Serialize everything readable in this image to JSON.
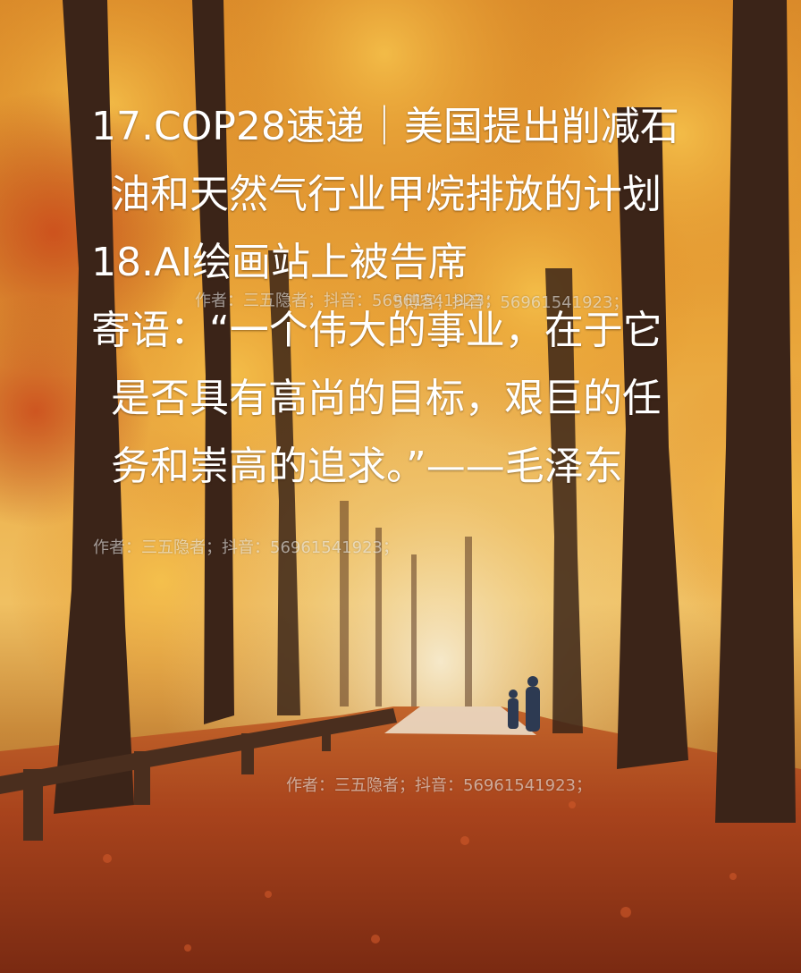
{
  "paragraphs": [
    {
      "text": "17.COP28速递｜美国提出削减石油和天然气行业甲烷排放的计划"
    },
    {
      "text": "18.AI绘画站上被告席"
    },
    {
      "text": "寄语：“一个伟大的事业，在于它是否具有高尚的目标，艰巨的任务和崇高的追求。”——毛泽东"
    }
  ],
  "watermarks": [
    {
      "text": "作者：三五隐者；抖音：56961541923；"
    },
    {
      "text": "5博客；抖音：56961541923；"
    },
    {
      "text": "作者：三五隐者；抖音：56961541923；"
    },
    {
      "text": "作者：三五隐者；抖音：56961541923；"
    }
  ],
  "colors": {
    "text": "#ffffff",
    "foliage_light": "#f2b640",
    "foliage_dark": "#c9641c",
    "leaf_floor": "#a8431c",
    "trunk": "#3b2418"
  }
}
